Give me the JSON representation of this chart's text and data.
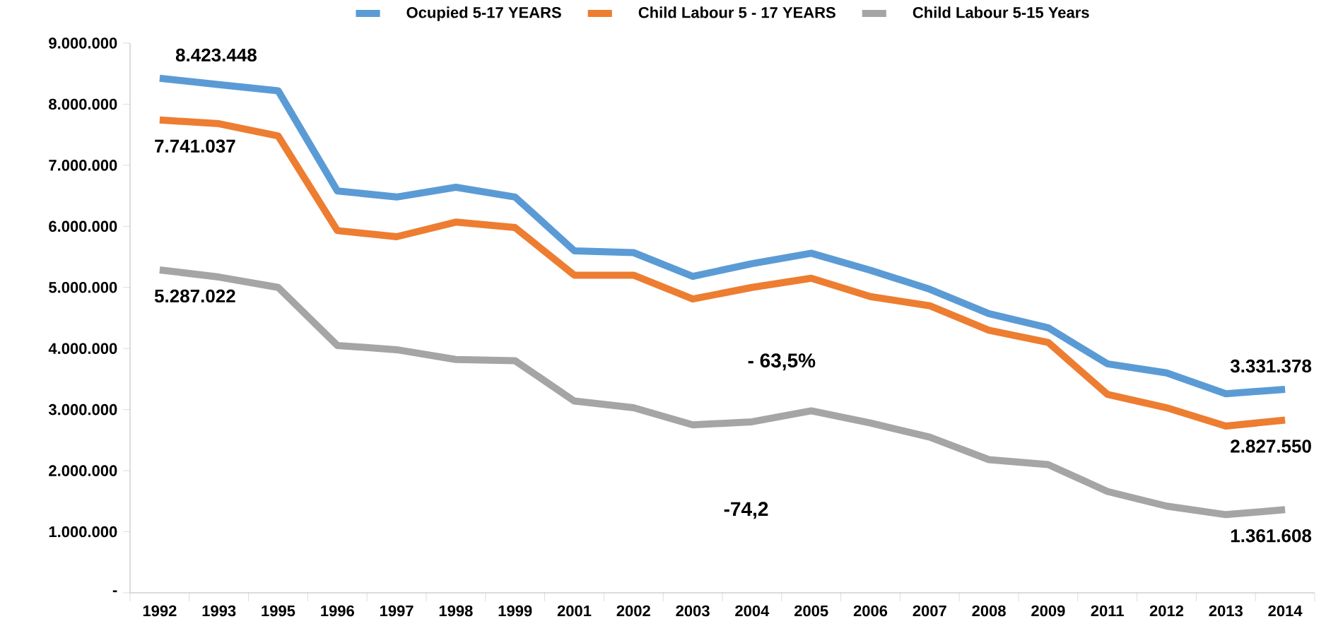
{
  "chart_data": {
    "type": "line",
    "categories": [
      "1992",
      "1993",
      "1995",
      "1996",
      "1997",
      "1998",
      "1999",
      "2001",
      "2002",
      "2003",
      "2004",
      "2005",
      "2006",
      "2007",
      "2008",
      "2009",
      "2011",
      "2012",
      "2013",
      "2014"
    ],
    "series": [
      {
        "name": "Ocupied 5-17 YEARS",
        "color": "#5b9bd5",
        "values": [
          8423448,
          8320000,
          8220000,
          6580000,
          6480000,
          6640000,
          6480000,
          5600000,
          5570000,
          5180000,
          5390000,
          5560000,
          5280000,
          4970000,
          4570000,
          4340000,
          3750000,
          3600000,
          3260000,
          3331378
        ]
      },
      {
        "name": "Child Labour 5 - 17 YEARS",
        "color": "#ed7d31",
        "values": [
          7741037,
          7680000,
          7480000,
          5930000,
          5830000,
          6070000,
          5980000,
          5200000,
          5200000,
          4810000,
          5000000,
          5150000,
          4850000,
          4700000,
          4300000,
          4100000,
          3250000,
          3030000,
          2730000,
          2827550
        ]
      },
      {
        "name": "Child Labour 5-15 Years",
        "color": "#a5a5a5",
        "values": [
          5287022,
          5170000,
          5000000,
          4050000,
          3980000,
          3820000,
          3800000,
          3140000,
          3030000,
          2750000,
          2800000,
          2980000,
          2780000,
          2550000,
          2180000,
          2100000,
          1660000,
          1420000,
          1280000,
          1361608
        ]
      }
    ],
    "ylim": [
      0,
      9000000
    ],
    "yticks": [
      {
        "value": 0,
        "label": "-"
      },
      {
        "value": 1000000,
        "label": "1.000.000"
      },
      {
        "value": 2000000,
        "label": "2.000.000"
      },
      {
        "value": 3000000,
        "label": "3.000.000"
      },
      {
        "value": 4000000,
        "label": "4.000.000"
      },
      {
        "value": 5000000,
        "label": "5.000.000"
      },
      {
        "value": 6000000,
        "label": "6.000.000"
      },
      {
        "value": 7000000,
        "label": "7.000.000"
      },
      {
        "value": 8000000,
        "label": "8.000.000"
      },
      {
        "value": 9000000,
        "label": "9.000.000"
      }
    ],
    "annotations": [
      {
        "text": "8.423.448",
        "x": "1992",
        "y": 8423448
      },
      {
        "text": "7.741.037",
        "x": "1992",
        "y": 7741037
      },
      {
        "text": "5.287.022",
        "x": "1992",
        "y": 5287022
      },
      {
        "text": "3.331.378",
        "x": "2014",
        "y": 3331378
      },
      {
        "text": "2.827.550",
        "x": "2014",
        "y": 2827550
      },
      {
        "text": "1.361.608",
        "x": "2014",
        "y": 1361608
      },
      "- 63,5%",
      "-74,2"
    ],
    "legend": "top",
    "grid": false,
    "marker": "none",
    "line_style": "solid"
  }
}
